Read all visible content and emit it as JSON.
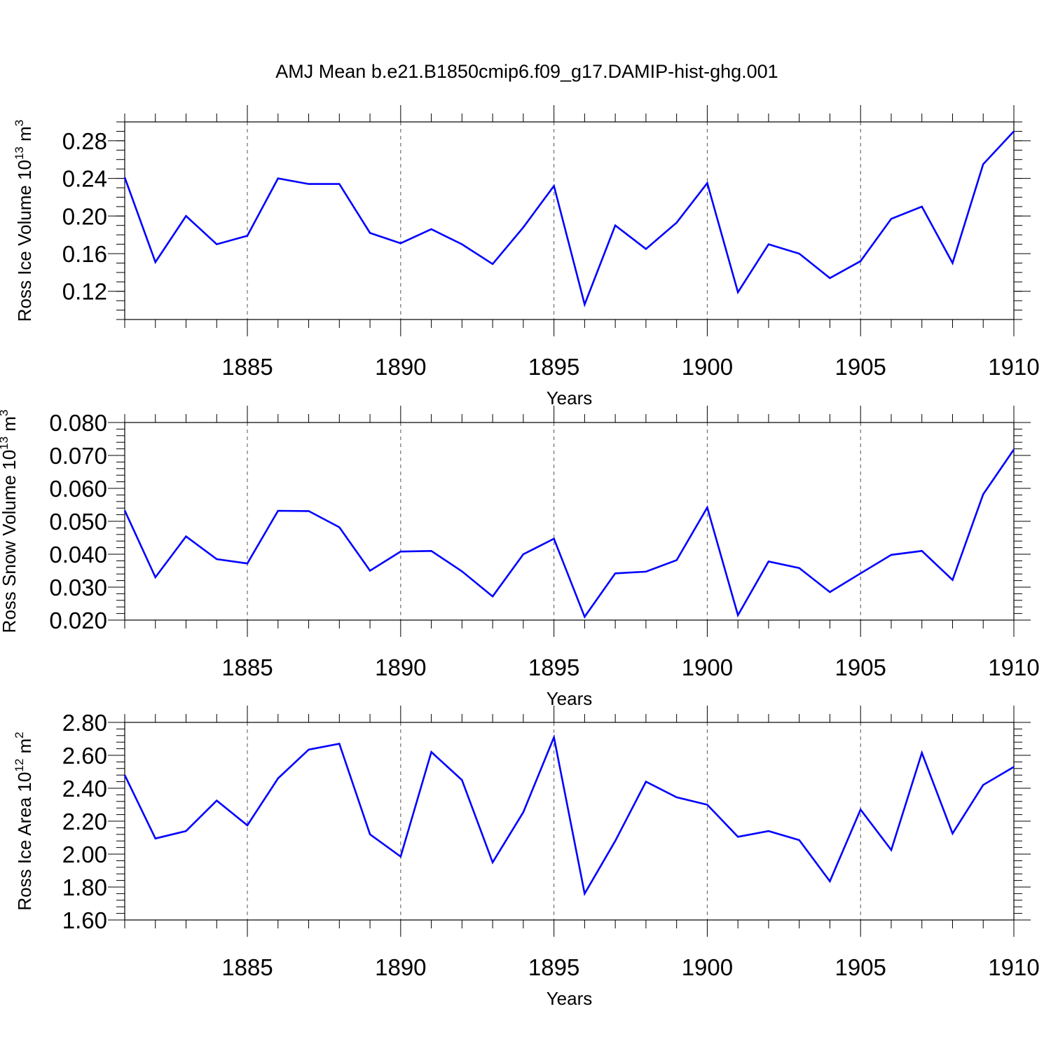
{
  "title": "AMJ Mean b.e21.B1850cmip6.f09_g17.DAMIP-hist-ghg.001",
  "style": {
    "line_color": "#0000ff",
    "axis_color": "#000000",
    "grid_color": "#555555"
  },
  "chart_data": [
    {
      "type": "line",
      "xlabel": "Years",
      "ylabel": {
        "text": "Ross Ice Volume 10",
        "exp": "13",
        "unit": " m",
        "unit_exp": "3"
      },
      "xlim": [
        1881,
        1910
      ],
      "ylim": [
        0.09,
        0.3
      ],
      "xticks": [
        1885,
        1890,
        1895,
        1900,
        1905,
        1910
      ],
      "yticks": [
        "0.12",
        "0.16",
        "0.20",
        "0.24",
        "0.28"
      ],
      "ytick_values": [
        0.12,
        0.16,
        0.2,
        0.24,
        0.28
      ],
      "yminor_step": 0.01,
      "grid_x": true,
      "x": [
        1881,
        1882,
        1883,
        1884,
        1885,
        1886,
        1887,
        1888,
        1889,
        1890,
        1891,
        1892,
        1893,
        1894,
        1895,
        1896,
        1897,
        1898,
        1899,
        1900,
        1901,
        1902,
        1903,
        1904,
        1905,
        1906,
        1907,
        1908,
        1909,
        1910
      ],
      "values": [
        0.241,
        0.151,
        0.2,
        0.17,
        0.179,
        0.24,
        0.234,
        0.234,
        0.182,
        0.171,
        0.186,
        0.17,
        0.149,
        0.188,
        0.232,
        0.106,
        0.19,
        0.165,
        0.193,
        0.235,
        0.119,
        0.17,
        0.16,
        0.134,
        0.152,
        0.197,
        0.21,
        0.15,
        0.255,
        0.29
      ]
    },
    {
      "type": "line",
      "xlabel": "Years",
      "ylabel": {
        "text": "Ross Snow Volume 10",
        "exp": "13",
        "unit": " m",
        "unit_exp": "3"
      },
      "xlim": [
        1881,
        1910
      ],
      "ylim": [
        0.02,
        0.08
      ],
      "xticks": [
        1885,
        1890,
        1895,
        1900,
        1905,
        1910
      ],
      "yticks": [
        "0.020",
        "0.030",
        "0.040",
        "0.050",
        "0.060",
        "0.070",
        "0.080"
      ],
      "ytick_values": [
        0.02,
        0.03,
        0.04,
        0.05,
        0.06,
        0.07,
        0.08
      ],
      "yminor_step": 0.002,
      "grid_x": true,
      "x": [
        1881,
        1882,
        1883,
        1884,
        1885,
        1886,
        1887,
        1888,
        1889,
        1890,
        1891,
        1892,
        1893,
        1894,
        1895,
        1896,
        1897,
        1898,
        1899,
        1900,
        1901,
        1902,
        1903,
        1904,
        1905,
        1906,
        1907,
        1908,
        1909,
        1910
      ],
      "values": [
        0.0533,
        0.033,
        0.0454,
        0.0385,
        0.0372,
        0.0532,
        0.0531,
        0.0482,
        0.035,
        0.0408,
        0.041,
        0.0348,
        0.0272,
        0.04,
        0.0447,
        0.021,
        0.0342,
        0.0347,
        0.0382,
        0.0542,
        0.0215,
        0.0378,
        0.0358,
        0.0285,
        0.0342,
        0.0398,
        0.041,
        0.0322,
        0.0582,
        0.0718
      ]
    },
    {
      "type": "line",
      "xlabel": "Years",
      "ylabel": {
        "text": "Ross Ice Area 10",
        "exp": "12",
        "unit": " m",
        "unit_exp": "2"
      },
      "xlim": [
        1881,
        1910
      ],
      "ylim": [
        1.6,
        2.8
      ],
      "xticks": [
        1885,
        1890,
        1895,
        1900,
        1905,
        1910
      ],
      "yticks": [
        "1.60",
        "1.80",
        "2.00",
        "2.20",
        "2.40",
        "2.60",
        "2.80"
      ],
      "ytick_values": [
        1.6,
        1.8,
        2.0,
        2.2,
        2.4,
        2.6,
        2.8
      ],
      "yminor_step": 0.04,
      "grid_x": true,
      "x": [
        1881,
        1882,
        1883,
        1884,
        1885,
        1886,
        1887,
        1888,
        1889,
        1890,
        1891,
        1892,
        1893,
        1894,
        1895,
        1896,
        1897,
        1898,
        1899,
        1900,
        1901,
        1902,
        1903,
        1904,
        1905,
        1906,
        1907,
        1908,
        1909,
        1910
      ],
      "values": [
        2.48,
        2.095,
        2.14,
        2.325,
        2.175,
        2.46,
        2.635,
        2.67,
        2.12,
        1.985,
        2.62,
        2.45,
        1.95,
        2.255,
        2.71,
        1.76,
        2.08,
        2.44,
        2.345,
        2.3,
        2.105,
        2.14,
        2.085,
        1.835,
        2.27,
        2.025,
        2.615,
        2.125,
        2.42,
        2.53
      ]
    }
  ]
}
